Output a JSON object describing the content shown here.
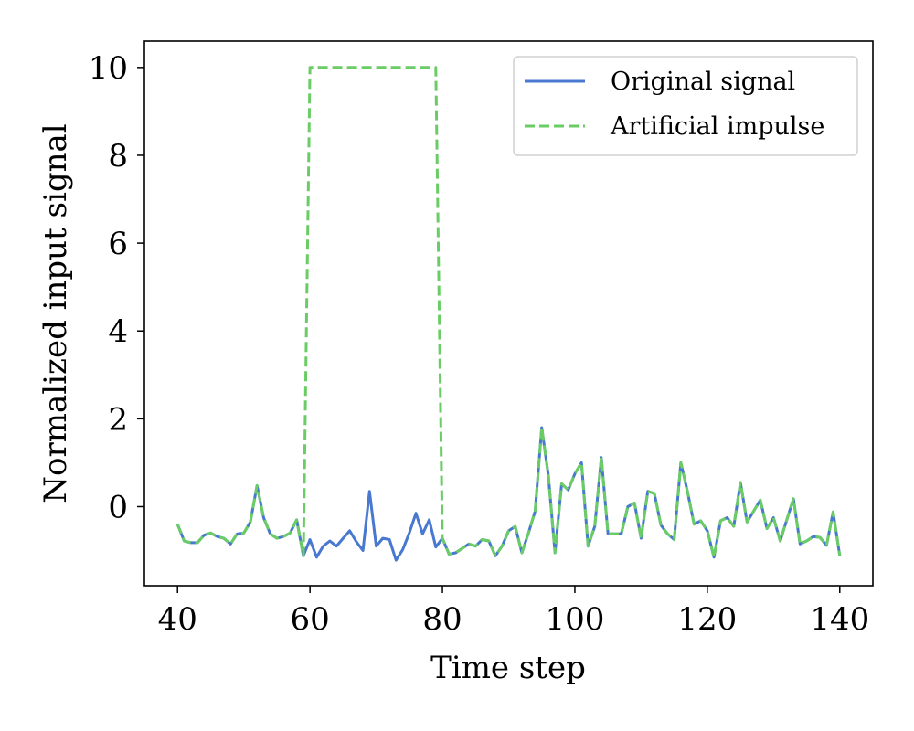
{
  "chart_data": {
    "type": "line",
    "xlabel": "Time step",
    "ylabel": "Normalized input signal",
    "xlim": [
      35,
      145
    ],
    "ylim": [
      -1.8,
      10.6
    ],
    "xticks": [
      40,
      60,
      80,
      100,
      120,
      140
    ],
    "yticks": [
      0,
      2,
      4,
      6,
      8,
      10
    ],
    "grid": false,
    "legend_position": "top-right",
    "x": [
      40,
      41,
      42,
      43,
      44,
      45,
      46,
      47,
      48,
      49,
      50,
      51,
      52,
      53,
      54,
      55,
      56,
      57,
      58,
      59,
      60,
      61,
      62,
      63,
      64,
      65,
      66,
      67,
      68,
      69,
      70,
      71,
      72,
      73,
      74,
      75,
      76,
      77,
      78,
      79,
      80,
      81,
      82,
      83,
      84,
      85,
      86,
      87,
      88,
      89,
      90,
      91,
      92,
      93,
      94,
      95,
      96,
      97,
      98,
      99,
      100,
      101,
      102,
      103,
      104,
      105,
      106,
      107,
      108,
      109,
      110,
      111,
      112,
      113,
      114,
      115,
      116,
      117,
      118,
      119,
      120,
      121,
      122,
      123,
      124,
      125,
      126,
      127,
      128,
      129,
      130,
      131,
      132,
      133,
      134,
      135,
      136,
      137,
      138,
      139,
      140
    ],
    "series": [
      {
        "name": "Original signal",
        "color": "#4878cf",
        "style": "solid",
        "values": [
          -0.4,
          -0.78,
          -0.82,
          -0.82,
          -0.65,
          -0.6,
          -0.68,
          -0.72,
          -0.85,
          -0.62,
          -0.6,
          -0.35,
          0.48,
          -0.25,
          -0.62,
          -0.72,
          -0.68,
          -0.6,
          -0.3,
          -1.12,
          -0.75,
          -1.15,
          -0.9,
          -0.78,
          -0.9,
          -0.72,
          -0.55,
          -0.8,
          -1.0,
          0.35,
          -0.9,
          -0.72,
          -0.75,
          -1.22,
          -0.98,
          -0.6,
          -0.15,
          -0.62,
          -0.3,
          -0.92,
          -0.72,
          -1.08,
          -1.05,
          -0.95,
          -0.85,
          -0.9,
          -0.75,
          -0.78,
          -1.12,
          -0.9,
          -0.55,
          -0.45,
          -1.05,
          -0.6,
          -0.1,
          1.8,
          0.7,
          -1.05,
          0.52,
          0.38,
          0.75,
          1.0,
          -0.9,
          -0.45,
          1.12,
          -0.62,
          -0.62,
          -0.62,
          0.0,
          0.08,
          -0.72,
          0.35,
          0.3,
          -0.42,
          -0.62,
          -0.75,
          1.0,
          0.35,
          -0.4,
          -0.32,
          -0.55,
          -1.15,
          -0.32,
          -0.25,
          -0.45,
          0.55,
          -0.35,
          -0.1,
          0.15,
          -0.5,
          -0.25,
          -0.78,
          -0.3,
          0.18,
          -0.85,
          -0.78,
          -0.68,
          -0.7,
          -0.88,
          -0.12,
          -1.12
        ]
      },
      {
        "name": "Artificial impulse",
        "color": "#6acc64",
        "style": "dashed",
        "values": [
          -0.4,
          -0.78,
          -0.82,
          -0.82,
          -0.65,
          -0.6,
          -0.68,
          -0.72,
          -0.85,
          -0.62,
          -0.6,
          -0.35,
          0.48,
          -0.25,
          -0.62,
          -0.72,
          -0.68,
          -0.6,
          -0.3,
          -1.12,
          10,
          10,
          10,
          10,
          10,
          10,
          10,
          10,
          10,
          10,
          10,
          10,
          10,
          10,
          10,
          10,
          10,
          10,
          10,
          10,
          -0.72,
          -1.08,
          -1.05,
          -0.95,
          -0.85,
          -0.9,
          -0.75,
          -0.78,
          -1.12,
          -0.9,
          -0.55,
          -0.45,
          -1.05,
          -0.6,
          -0.1,
          1.8,
          0.7,
          -1.05,
          0.52,
          0.38,
          0.75,
          1.0,
          -0.9,
          -0.45,
          1.12,
          -0.62,
          -0.62,
          -0.62,
          0.0,
          0.08,
          -0.72,
          0.35,
          0.3,
          -0.42,
          -0.62,
          -0.75,
          1.0,
          0.35,
          -0.4,
          -0.32,
          -0.55,
          -1.15,
          -0.32,
          -0.25,
          -0.45,
          0.55,
          -0.35,
          -0.1,
          0.15,
          -0.5,
          -0.25,
          -0.78,
          -0.3,
          0.18,
          -0.85,
          -0.78,
          -0.68,
          -0.7,
          -0.88,
          -0.12,
          -1.12
        ]
      }
    ]
  }
}
